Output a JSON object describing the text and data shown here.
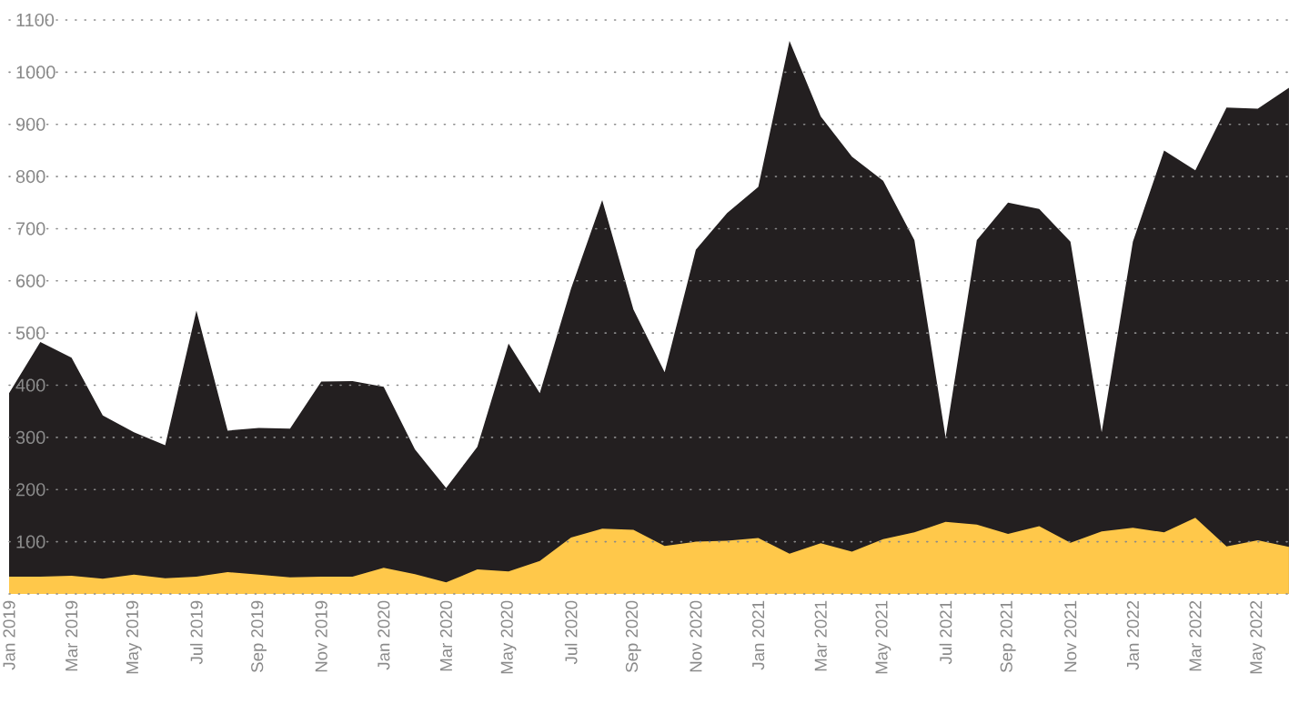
{
  "chart_data": {
    "type": "area",
    "categories": [
      "Jan 2019",
      null,
      "Mar 2019",
      null,
      "May 2019",
      null,
      "Jul 2019",
      null,
      "Sep 2019",
      null,
      "Nov 2019",
      null,
      "Jan 2020",
      null,
      "Mar 2020",
      null,
      "May 2020",
      null,
      "Jul 2020",
      null,
      "Sep 2020",
      null,
      "Nov 2020",
      null,
      "Jan 2021",
      null,
      "Mar 2021",
      null,
      "May 2021",
      null,
      "Jul 2021",
      null,
      "Sep 2021",
      null,
      "Nov 2021",
      null,
      "Jan 2022",
      null,
      "Mar 2022",
      null,
      "May 2022",
      null
    ],
    "series": [
      {
        "color": "#231f20",
        "values": [
          385,
          483,
          453,
          342,
          310,
          285,
          543,
          313,
          318,
          317,
          407,
          408,
          397,
          277,
          203,
          282,
          480,
          385,
          585,
          755,
          545,
          425,
          660,
          730,
          780,
          1060,
          915,
          838,
          792,
          678,
          300,
          678,
          750,
          738,
          675,
          310,
          675,
          850,
          812,
          932,
          930,
          970
        ]
      },
      {
        "color": "#ffc84a",
        "values": [
          33,
          33,
          35,
          29,
          37,
          30,
          33,
          42,
          37,
          32,
          33,
          33,
          50,
          38,
          22,
          47,
          43,
          63,
          108,
          125,
          123,
          92,
          100,
          102,
          107,
          77,
          97,
          81,
          105,
          118,
          138,
          133,
          115,
          130,
          98,
          120,
          127,
          118,
          146,
          91,
          103,
          90
        ]
      }
    ],
    "ylim": [
      0,
      1100
    ],
    "yticks": [
      {
        "value": 0,
        "label": null
      },
      100,
      200,
      300,
      400,
      500,
      600,
      700,
      800,
      900,
      1000,
      1100
    ],
    "grid": "y"
  }
}
